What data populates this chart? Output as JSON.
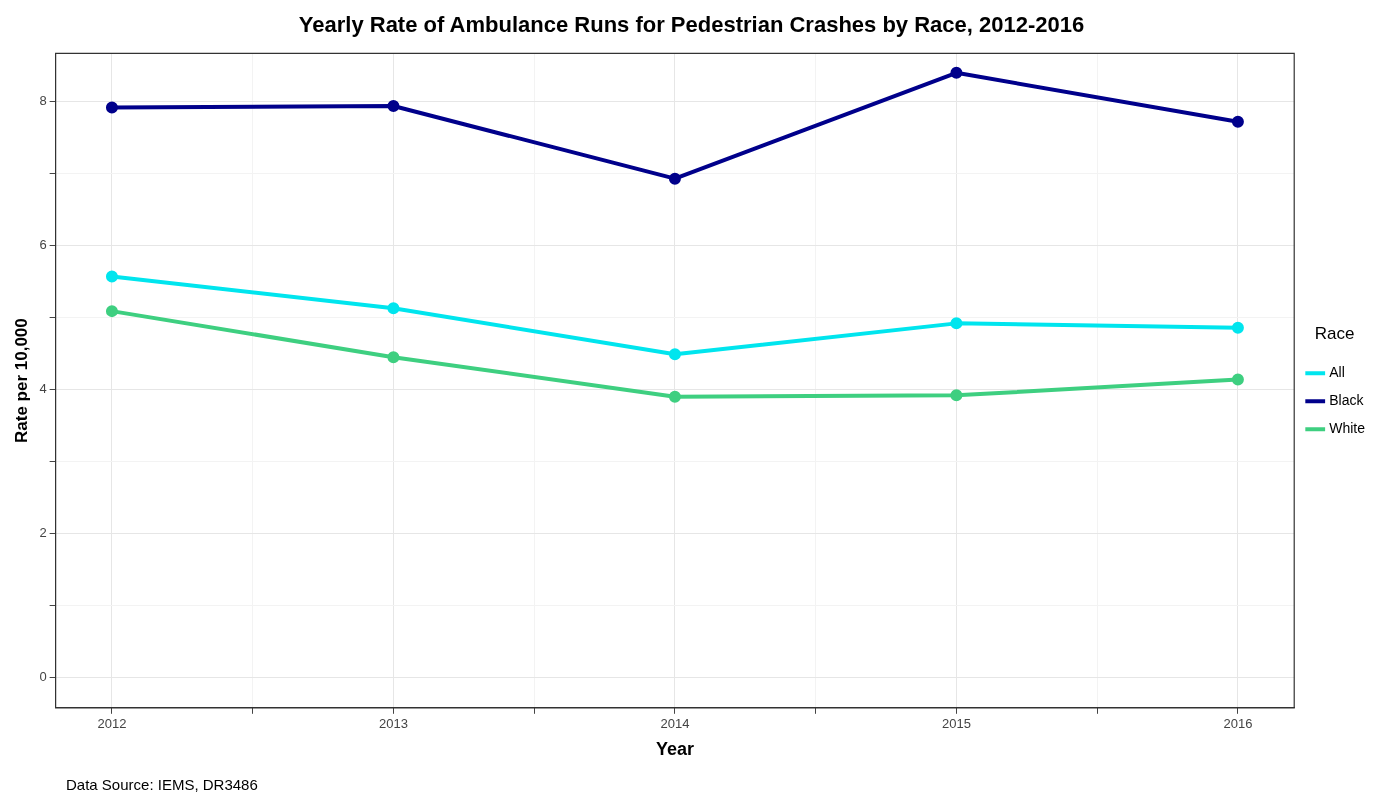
{
  "chart_data": {
    "type": "line",
    "title": "Yearly Rate of Ambulance Runs for Pedestrian Crashes by Race, 2012-2016",
    "xlabel": "Year",
    "ylabel": "Rate per 10,000",
    "legend_title": "Race",
    "x": [
      2012,
      2013,
      2014,
      2015,
      2016
    ],
    "series": [
      {
        "name": "All",
        "color": "#00e5ee",
        "values": [
          5.57,
          5.13,
          4.49,
          4.92,
          4.86
        ]
      },
      {
        "name": "Black",
        "color": "#00008b",
        "values": [
          7.92,
          7.94,
          6.93,
          8.4,
          7.72
        ]
      },
      {
        "name": "White",
        "color": "#3ecf80",
        "values": [
          5.09,
          4.45,
          3.9,
          3.92,
          4.14
        ]
      }
    ],
    "xlim": [
      2011.8,
      2016.2
    ],
    "xticks": [
      2012,
      {
        "value": 2012.5,
        "label": null
      },
      2013,
      {
        "value": 2013.5,
        "label": null
      },
      2014,
      {
        "value": 2014.5,
        "label": null
      },
      2015,
      {
        "value": 2015.5,
        "label": null
      },
      2016
    ],
    "ylim": [
      -0.42,
      8.67
    ],
    "yticks": [
      0,
      {
        "value": 1,
        "label": null
      },
      2,
      {
        "value": 3,
        "label": null
      },
      4,
      {
        "value": 5,
        "label": null
      },
      6,
      {
        "value": 7,
        "label": null
      },
      8
    ],
    "grid": true,
    "legend": "right",
    "marker": "circle",
    "line_style": "solid",
    "annotations": [
      "Data Source: IEMS, DR3486"
    ]
  }
}
